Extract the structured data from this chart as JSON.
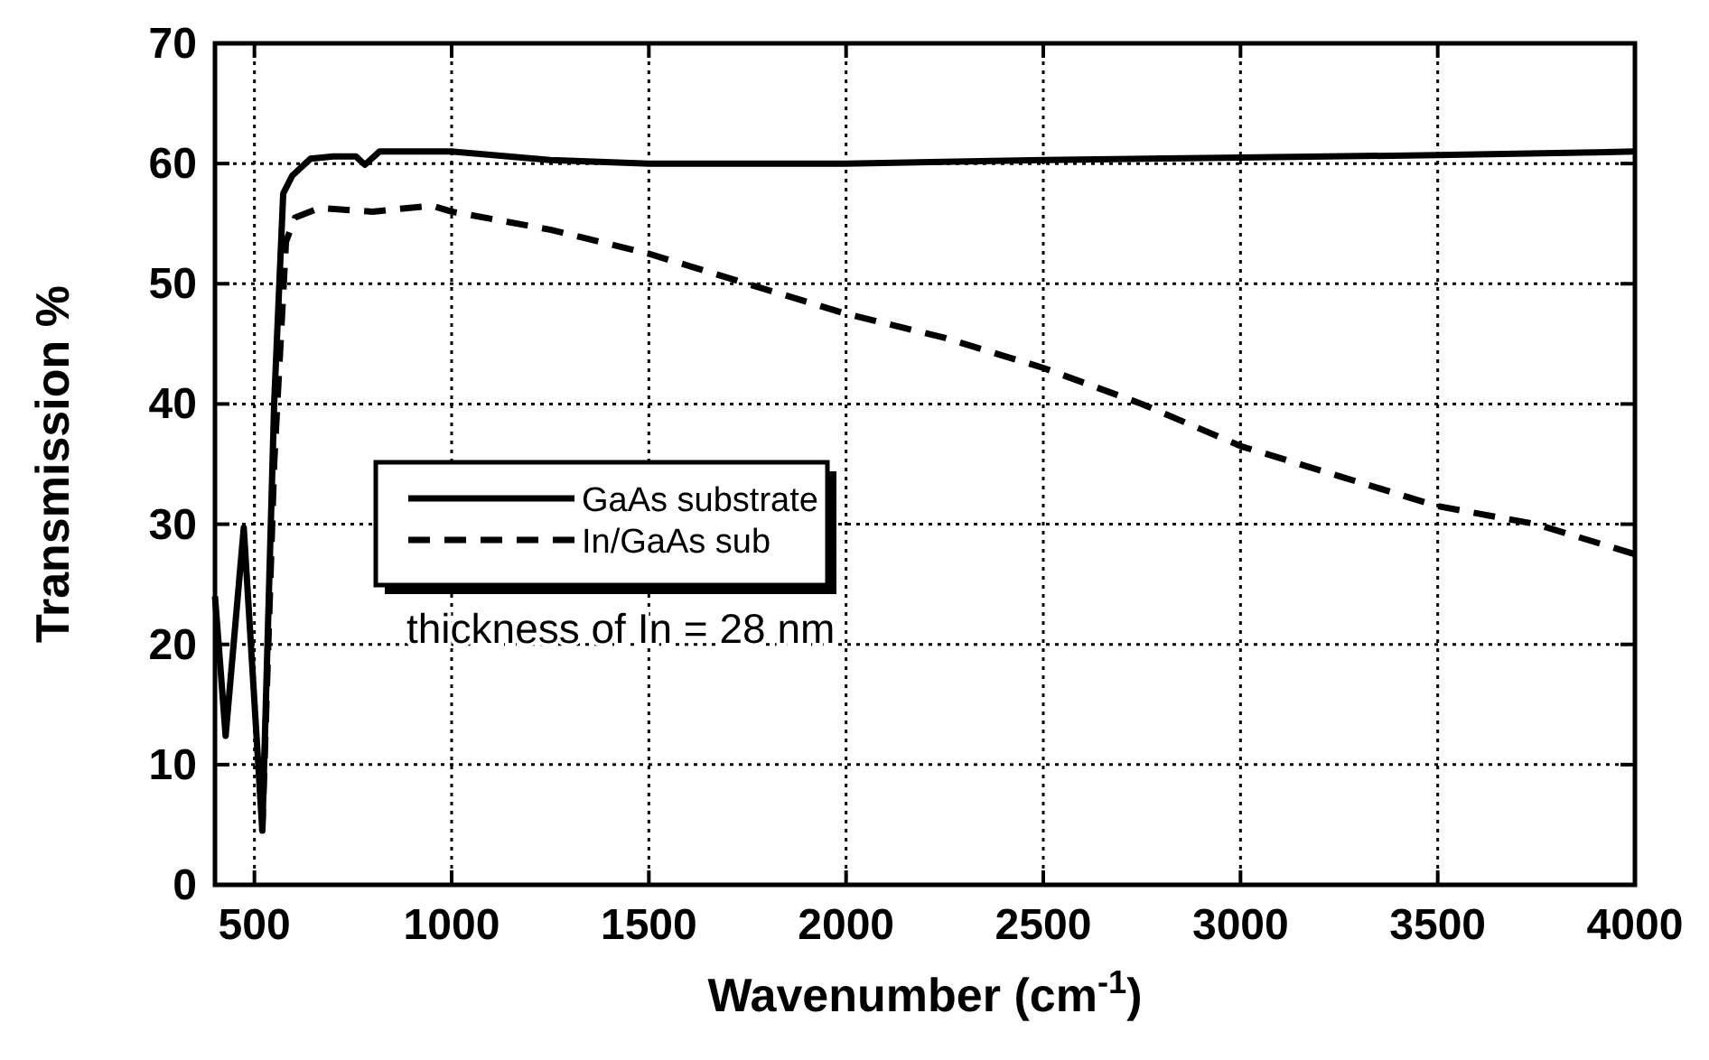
{
  "chart_data": {
    "type": "line",
    "xlabel": "Wavenumber  (cm$^{-1}$)",
    "ylabel": "Transmission  %",
    "xlim": [
      400,
      4000
    ],
    "ylim": [
      0,
      70
    ],
    "xticks": [
      500,
      1000,
      1500,
      2000,
      2500,
      3000,
      3500,
      4000
    ],
    "yticks": [
      0,
      10,
      20,
      30,
      40,
      50,
      60,
      70
    ],
    "grid": true,
    "legend": "center left",
    "annotations": [
      "thickness of In = 28 nm"
    ],
    "series": [
      {
        "name": "GaAs substrate",
        "color": "#000000",
        "line_style": "solid",
        "x": [
          400,
          427,
          473,
          520,
          550,
          573,
          596,
          642,
          700,
          757,
          780,
          817,
          900,
          1000,
          1250,
          1500,
          2000,
          2500,
          3000,
          3500,
          4000
        ],
        "values": [
          24,
          12.4,
          29.7,
          4.5,
          40,
          57.5,
          59,
          60.4,
          60.6,
          60.6,
          59.9,
          61,
          61,
          61,
          60.3,
          60,
          60,
          60.3,
          60.5,
          60.7,
          61
        ]
      },
      {
        "name": "In/GaAs sub",
        "color": "#000000",
        "line_style": "dashed",
        "x": [
          520,
          550,
          580,
          603,
          665,
          800,
          950,
          1000,
          1250,
          1500,
          1750,
          2000,
          2250,
          2500,
          2750,
          3000,
          3250,
          3500,
          3750,
          4000
        ],
        "values": [
          4.5,
          35,
          53.5,
          55.5,
          56.3,
          56,
          56.5,
          56,
          54.5,
          52.5,
          50,
          47.5,
          45.5,
          43,
          40,
          36.5,
          34,
          31.5,
          30,
          27.5
        ]
      }
    ]
  }
}
